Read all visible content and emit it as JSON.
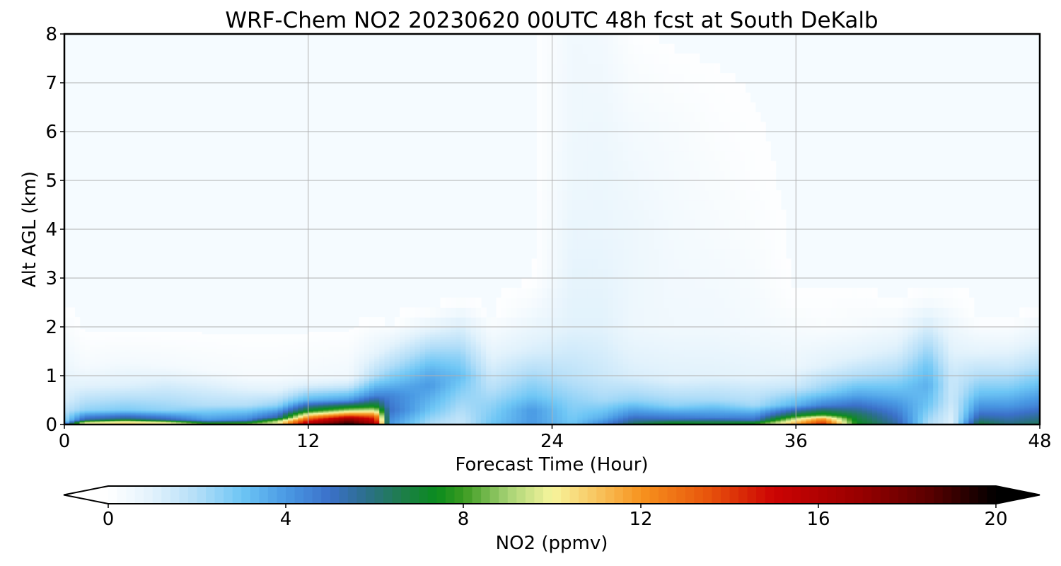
{
  "chart_data": {
    "type": "heatmap",
    "title": "WRF-Chem NO2  20230620 00UTC 48h fcst at South DeKalb",
    "xlabel": "Forecast Time (Hour)",
    "ylabel": "Alt AGL (km)",
    "xlim": [
      0,
      48
    ],
    "ylim": [
      0,
      8
    ],
    "x_ticks": [
      0,
      12,
      24,
      36,
      48
    ],
    "y_ticks": [
      0,
      1,
      2,
      3,
      4,
      5,
      6,
      7,
      8
    ],
    "grid": true,
    "colorbar": {
      "label": "NO2  (ppmv)",
      "vmin": 0,
      "vmax": 20,
      "ticks": [
        0,
        4,
        8,
        12,
        16,
        20
      ],
      "extend": "both",
      "placement": "bottom"
    },
    "columns": [
      {
        "t": 0,
        "profile": [
          [
            0,
            5.5
          ],
          [
            0.06,
            2.5
          ],
          [
            0.5,
            1.2
          ],
          [
            1.0,
            0.8
          ],
          [
            1.7,
            0.4
          ],
          [
            2.5,
            0
          ]
        ]
      },
      {
        "t": 1,
        "profile": [
          [
            0,
            10.5
          ],
          [
            0.05,
            9.5
          ],
          [
            0.1,
            5.5
          ],
          [
            0.3,
            2.5
          ],
          [
            0.8,
            1.0
          ],
          [
            1.2,
            0.35
          ],
          [
            2.0,
            0
          ]
        ]
      },
      {
        "t": 3,
        "profile": [
          [
            0,
            11
          ],
          [
            0.06,
            10.2
          ],
          [
            0.12,
            6
          ],
          [
            0.3,
            2.8
          ],
          [
            0.8,
            1.1
          ],
          [
            1.3,
            0.4
          ],
          [
            2.0,
            0
          ]
        ]
      },
      {
        "t": 5,
        "profile": [
          [
            0,
            10.5
          ],
          [
            0.05,
            9.8
          ],
          [
            0.1,
            5.5
          ],
          [
            0.3,
            2.5
          ],
          [
            0.9,
            1.1
          ],
          [
            1.2,
            0.4
          ],
          [
            2.0,
            0
          ]
        ]
      },
      {
        "t": 7,
        "profile": [
          [
            0,
            9.5
          ],
          [
            0.04,
            7
          ],
          [
            0.1,
            4
          ],
          [
            0.4,
            2
          ],
          [
            0.9,
            0.9
          ],
          [
            1.1,
            0.35
          ],
          [
            2.0,
            0
          ]
        ]
      },
      {
        "t": 9,
        "profile": [
          [
            0,
            9.5
          ],
          [
            0.04,
            7.5
          ],
          [
            0.1,
            4.5
          ],
          [
            0.4,
            2.0
          ],
          [
            0.8,
            0.8
          ],
          [
            1.0,
            0.3
          ],
          [
            2.0,
            0
          ]
        ]
      },
      {
        "t": 10.5,
        "profile": [
          [
            0,
            10.5
          ],
          [
            0.08,
            9
          ],
          [
            0.15,
            5.5
          ],
          [
            0.4,
            2.5
          ],
          [
            0.7,
            1.0
          ],
          [
            1.0,
            0.3
          ],
          [
            2.0,
            0
          ]
        ]
      },
      {
        "t": 12,
        "profile": [
          [
            0,
            17
          ],
          [
            0.1,
            14
          ],
          [
            0.2,
            10.5
          ],
          [
            0.28,
            7.5
          ],
          [
            0.5,
            3.5
          ],
          [
            0.8,
            1.2
          ],
          [
            1.0,
            0.4
          ],
          [
            2.0,
            0
          ]
        ]
      },
      {
        "t": 14,
        "profile": [
          [
            0,
            20
          ],
          [
            0.12,
            17
          ],
          [
            0.22,
            12
          ],
          [
            0.3,
            9
          ],
          [
            0.5,
            4
          ],
          [
            0.8,
            1.5
          ],
          [
            1.0,
            0.5
          ],
          [
            2.0,
            0
          ]
        ]
      },
      {
        "t": 15.3,
        "profile": [
          [
            0,
            17
          ],
          [
            0.15,
            14
          ],
          [
            0.28,
            10
          ],
          [
            0.38,
            7.5
          ],
          [
            0.6,
            4.5
          ],
          [
            1.0,
            2.0
          ],
          [
            1.5,
            0.8
          ],
          [
            2.2,
            0
          ]
        ]
      },
      {
        "t": 16,
        "profile": [
          [
            0,
            4
          ],
          [
            0.3,
            5
          ],
          [
            0.6,
            4.5
          ],
          [
            0.9,
            3.0
          ],
          [
            1.2,
            2.0
          ],
          [
            1.6,
            1.0
          ],
          [
            2.1,
            0
          ]
        ]
      },
      {
        "t": 18,
        "profile": [
          [
            0,
            2
          ],
          [
            0.3,
            3
          ],
          [
            0.8,
            4
          ],
          [
            1.1,
            3.5
          ],
          [
            1.6,
            2.0
          ],
          [
            2.0,
            0.8
          ],
          [
            2.4,
            0
          ]
        ]
      },
      {
        "t": 19.5,
        "profile": [
          [
            0,
            1.5
          ],
          [
            0.6,
            2.5
          ],
          [
            1.0,
            3.2
          ],
          [
            1.4,
            2.5
          ],
          [
            1.8,
            1.6
          ],
          [
            2.3,
            0.6
          ],
          [
            2.6,
            0
          ]
        ]
      },
      {
        "t": 21,
        "profile": [
          [
            0,
            3
          ],
          [
            0.4,
            2.5
          ],
          [
            0.8,
            1.8
          ],
          [
            1.2,
            1.2
          ],
          [
            1.7,
            0.6
          ],
          [
            2.3,
            0
          ]
        ]
      },
      {
        "t": 23,
        "profile": [
          [
            0,
            4
          ],
          [
            0.3,
            4
          ],
          [
            0.6,
            3
          ],
          [
            1.0,
            2.2
          ],
          [
            1.5,
            1.2
          ],
          [
            2.2,
            0.5
          ],
          [
            3.0,
            0
          ]
        ]
      },
      {
        "t": 25,
        "profile": [
          [
            0,
            3
          ],
          [
            0.5,
            2.5
          ],
          [
            1.0,
            1.8
          ],
          [
            2.0,
            1.0
          ],
          [
            3.5,
            0.8
          ],
          [
            5.0,
            0.6
          ],
          [
            8.0,
            0.5
          ]
        ]
      },
      {
        "t": 26.5,
        "profile": [
          [
            0,
            4.5
          ],
          [
            0.15,
            3.5
          ],
          [
            0.5,
            2.2
          ],
          [
            1.0,
            1.5
          ],
          [
            2.0,
            1.0
          ],
          [
            4.0,
            0.7
          ],
          [
            6.0,
            0.6
          ],
          [
            8.0,
            0.45
          ]
        ]
      },
      {
        "t": 28,
        "profile": [
          [
            0,
            7
          ],
          [
            0.05,
            6
          ],
          [
            0.2,
            4.5
          ],
          [
            0.5,
            2.5
          ],
          [
            1.0,
            1.2
          ],
          [
            2.0,
            0.6
          ],
          [
            4.0,
            0.6
          ],
          [
            6.0,
            0.4
          ],
          [
            8.0,
            0.1
          ]
        ]
      },
      {
        "t": 30,
        "profile": [
          [
            0,
            8
          ],
          [
            0.05,
            7
          ],
          [
            0.12,
            5
          ],
          [
            0.4,
            2.5
          ],
          [
            0.9,
            1.1
          ],
          [
            2.0,
            0.5
          ],
          [
            4.0,
            0.4
          ],
          [
            6.0,
            0.3
          ],
          [
            8.0,
            0
          ]
        ]
      },
      {
        "t": 32,
        "profile": [
          [
            0,
            7.5
          ],
          [
            0.06,
            6.5
          ],
          [
            0.15,
            4.5
          ],
          [
            0.5,
            2.2
          ],
          [
            1.0,
            1.0
          ],
          [
            2.0,
            0.5
          ],
          [
            4.0,
            0.3
          ],
          [
            6.0,
            0.15
          ],
          [
            8.0,
            0
          ]
        ]
      },
      {
        "t": 34,
        "profile": [
          [
            0,
            8
          ],
          [
            0.05,
            7
          ],
          [
            0.1,
            5
          ],
          [
            0.4,
            2.2
          ],
          [
            1.0,
            0.9
          ],
          [
            2.0,
            0.4
          ],
          [
            3.0,
            0.3
          ],
          [
            5.0,
            0.1
          ],
          [
            8.0,
            0
          ]
        ]
      },
      {
        "t": 36,
        "profile": [
          [
            0,
            12
          ],
          [
            0.1,
            10
          ],
          [
            0.2,
            7
          ],
          [
            0.4,
            3.5
          ],
          [
            0.8,
            1.5
          ],
          [
            1.2,
            0.7
          ],
          [
            2.0,
            0.3
          ],
          [
            2.5,
            0.1
          ],
          [
            3.0,
            0
          ]
        ]
      },
      {
        "t": 37.3,
        "profile": [
          [
            0,
            15
          ],
          [
            0.12,
            12
          ],
          [
            0.2,
            8
          ],
          [
            0.4,
            4.5
          ],
          [
            0.7,
            2.5
          ],
          [
            1.2,
            1.0
          ],
          [
            2.0,
            0.2
          ],
          [
            3.0,
            0
          ]
        ]
      },
      {
        "t": 39,
        "profile": [
          [
            0,
            7.5
          ],
          [
            0.2,
            6.5
          ],
          [
            0.4,
            5.0
          ],
          [
            0.6,
            3.8
          ],
          [
            1.0,
            2.0
          ],
          [
            1.4,
            1.0
          ],
          [
            2.0,
            0.3
          ],
          [
            3.0,
            0
          ]
        ]
      },
      {
        "t": 41,
        "profile": [
          [
            0,
            5.5
          ],
          [
            0.3,
            4.5
          ],
          [
            0.6,
            3.5
          ],
          [
            1.0,
            2.3
          ],
          [
            1.5,
            1.2
          ],
          [
            2.0,
            0.5
          ],
          [
            2.6,
            0
          ]
        ]
      },
      {
        "t": 42.5,
        "profile": [
          [
            0,
            2
          ],
          [
            0.4,
            3
          ],
          [
            0.8,
            3.5
          ],
          [
            1.2,
            3
          ],
          [
            1.6,
            2.2
          ],
          [
            2.0,
            1.3
          ],
          [
            2.5,
            0.4
          ],
          [
            2.9,
            0
          ]
        ]
      },
      {
        "t": 43.7,
        "profile": [
          [
            0,
            1.0
          ],
          [
            0.5,
            1.5
          ],
          [
            1.0,
            1.5
          ],
          [
            1.5,
            1.0
          ],
          [
            2.0,
            0.6
          ],
          [
            2.5,
            0.2
          ],
          [
            3.0,
            0
          ]
        ]
      },
      {
        "t": 45,
        "profile": [
          [
            0,
            7
          ],
          [
            0.15,
            5.5
          ],
          [
            0.3,
            4.5
          ],
          [
            0.6,
            3.2
          ],
          [
            1.0,
            2.0
          ],
          [
            1.5,
            0.9
          ],
          [
            2.2,
            0
          ]
        ]
      },
      {
        "t": 46.5,
        "profile": [
          [
            0,
            6
          ],
          [
            0.2,
            5
          ],
          [
            0.4,
            4
          ],
          [
            0.8,
            2.6
          ],
          [
            1.2,
            1.5
          ],
          [
            1.7,
            0.6
          ],
          [
            2.2,
            0
          ]
        ]
      },
      {
        "t": 48,
        "profile": [
          [
            0,
            6.5
          ],
          [
            0.2,
            5.5
          ],
          [
            0.4,
            4.5
          ],
          [
            0.8,
            3.2
          ],
          [
            1.2,
            2.0
          ],
          [
            1.7,
            1.0
          ],
          [
            2.2,
            0.3
          ],
          [
            2.5,
            0
          ]
        ]
      }
    ]
  }
}
